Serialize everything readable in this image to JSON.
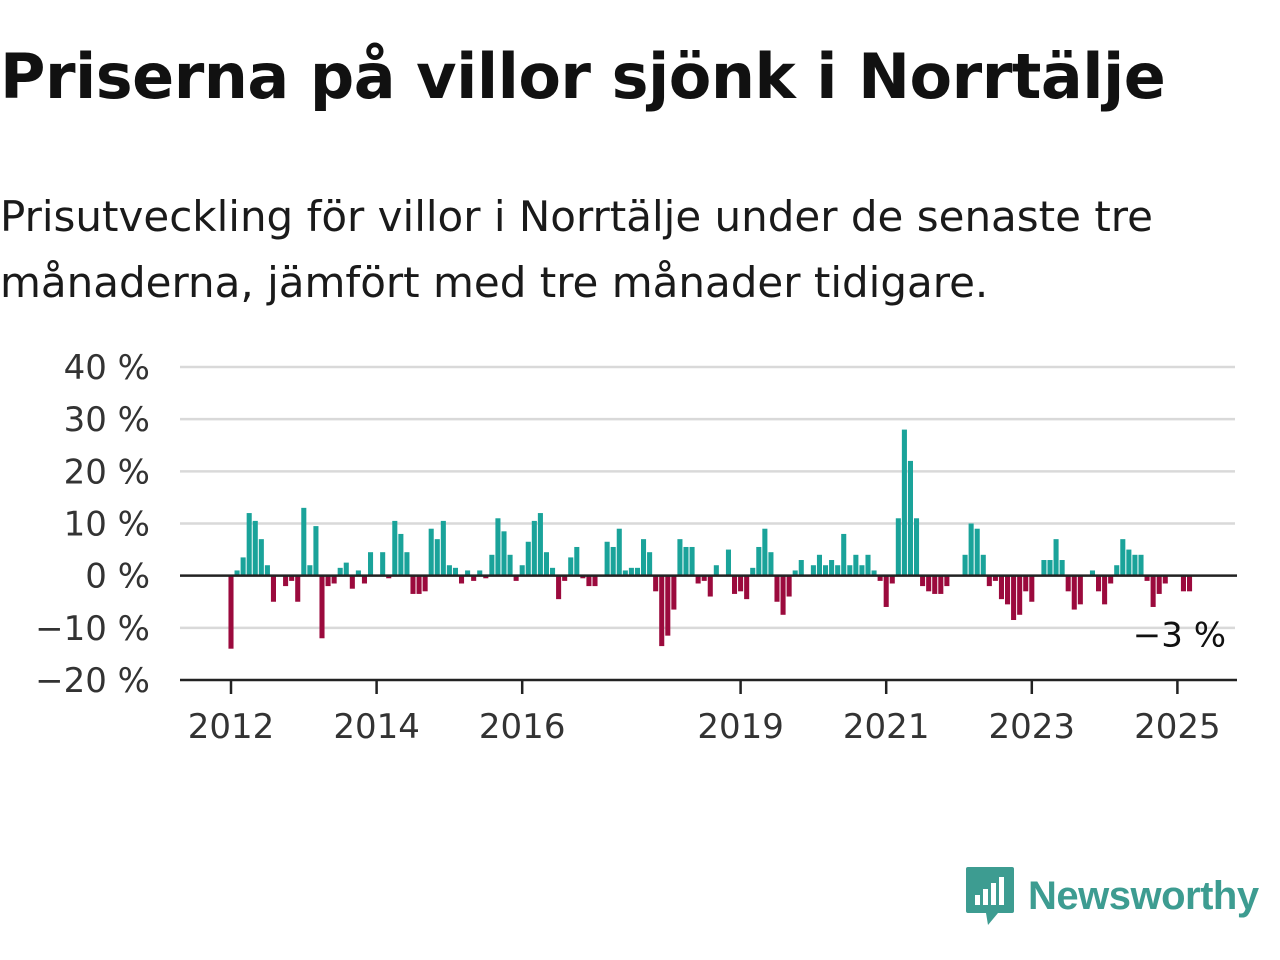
{
  "title": "Priserna på villor sjönk i Norrtälje",
  "subtitle": "Prisutveckling för villor i Norrtälje under de senaste tre månaderna, jämfört med tre månader tidigare.",
  "brand": {
    "name": "Newsworthy",
    "icon": "newsworthy-logo-icon"
  },
  "colors": {
    "positive": "#1aa39a",
    "negative": "#9b0a3d",
    "grid": "#d9d9d9",
    "axis": "#222222",
    "text": "#333333",
    "brand": "#3d9c91"
  },
  "chart_data": {
    "type": "bar",
    "x_start": "2012-01",
    "x_end": "2025-05",
    "x_ticks": [
      {
        "year": 2012,
        "label": "2012"
      },
      {
        "year": 2014,
        "label": "2014"
      },
      {
        "year": 2016,
        "label": "2016"
      },
      {
        "year": 2019,
        "label": "2019"
      },
      {
        "year": 2021,
        "label": "2021"
      },
      {
        "year": 2023,
        "label": "2023"
      },
      {
        "year": 2025,
        "label": "2025"
      }
    ],
    "y_ticks": [
      {
        "value": 40,
        "label": "40 %"
      },
      {
        "value": 30,
        "label": "30 %"
      },
      {
        "value": 20,
        "label": "20 %"
      },
      {
        "value": 10,
        "label": "10 %"
      },
      {
        "value": 0,
        "label": "0 %"
      },
      {
        "value": -10,
        "label": "−10 %"
      },
      {
        "value": -20,
        "label": "−20 %"
      }
    ],
    "ylim": [
      -20,
      40
    ],
    "grid": true,
    "annotation": {
      "label": "−3 %",
      "value": -3
    },
    "values": [
      -14,
      1,
      3.5,
      12,
      10.5,
      7,
      2,
      -5,
      null,
      -2,
      -1,
      -5,
      13,
      2,
      9.5,
      -12,
      -2,
      -1.5,
      1.5,
      2.5,
      -2.5,
      1,
      -1.5,
      4.5,
      0,
      4.5,
      -0.5,
      10.5,
      8,
      4.5,
      -3.5,
      -3.5,
      -3,
      9,
      7,
      10.5,
      2,
      1.5,
      -1.5,
      1,
      -1,
      1,
      -0.5,
      4,
      11,
      8.5,
      4,
      -1,
      2,
      6.5,
      10.5,
      12,
      4.5,
      1.5,
      -4.5,
      -1,
      3.5,
      5.5,
      -0.5,
      -2,
      -2,
      null,
      6.5,
      5.5,
      9,
      1,
      1.5,
      1.5,
      7,
      4.5,
      -3,
      -13.5,
      -11.5,
      -6.5,
      7,
      5.5,
      5.5,
      -1.5,
      -1,
      -4,
      2,
      null,
      5,
      -3.5,
      -3,
      -4.5,
      1.5,
      5.5,
      9,
      4.5,
      -5,
      -7.5,
      -4,
      1,
      3,
      null,
      2,
      4,
      2,
      3,
      2,
      8,
      2,
      4,
      2,
      4,
      1,
      -1,
      -6,
      -1.5,
      11,
      28,
      22,
      11,
      -2,
      -3,
      -3.5,
      -3.5,
      -2,
      null,
      null,
      4,
      10,
      9,
      4,
      -2,
      -1,
      -4.5,
      -5.5,
      -8.5,
      -7.5,
      -3,
      -5,
      null,
      3,
      3,
      7,
      3,
      -3,
      -6.5,
      -5.5,
      null,
      1,
      -3,
      -5.5,
      -1.5,
      2,
      7,
      5,
      4,
      4,
      -1,
      -6,
      -3.5,
      -1.5,
      null,
      null,
      -3,
      -3
    ]
  }
}
